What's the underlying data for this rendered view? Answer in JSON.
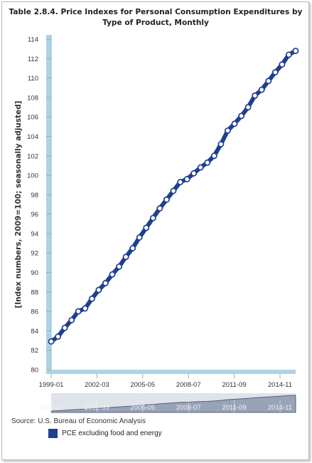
{
  "title_lines": [
    "Table 2.8.4. Price Indexes for Personal Consumption Expenditures by",
    "Type of Product, Monthly"
  ],
  "source": "Source: U.S. Bureau of Economic Analysis",
  "colors": {
    "series": "#1f3f8f",
    "marker_fill": "#ffffff",
    "axis_band": "#add4e4",
    "navigator_bg": "#99a3b8",
    "legend_swatch": "#1f3f8f"
  },
  "chart_data": {
    "type": "line",
    "title": "Table 2.8.4. Price Indexes for Personal Consumption Expenditures by Type of Product, Monthly",
    "ylabel": "[Index numbers, 2009=100; seasonally adjusted]",
    "xlabel": "",
    "ylim": [
      80,
      114
    ],
    "yticks": [
      "80",
      "82",
      "84",
      "86",
      "88",
      "90",
      "92",
      "94",
      "96",
      "98",
      "100",
      "102",
      "104",
      "106",
      "108",
      "110",
      "112",
      "114"
    ],
    "xticks": [
      "1999-01",
      "2002-03",
      "2005-05",
      "2008-07",
      "2011-09",
      "2014-11"
    ],
    "navigator_ticks": [
      "1999-01",
      "2002-03",
      "2005-05",
      "2008-07",
      "2011-09",
      "2014-11"
    ],
    "grid": false,
    "legend": "bottom-left",
    "series": [
      {
        "name": "PCE excluding food and energy",
        "x_start": "1999-01",
        "x_end": "2015-12",
        "values": [
          82.9,
          83.4,
          84.3,
          85.1,
          86.0,
          86.3,
          87.3,
          88.2,
          88.9,
          89.8,
          90.6,
          91.6,
          92.5,
          93.6,
          94.6,
          95.6,
          96.6,
          97.5,
          98.4,
          99.3,
          99.6,
          100.2,
          100.8,
          101.3,
          102.0,
          103.2,
          104.6,
          105.3,
          106.1,
          107.0,
          108.2,
          108.8,
          109.7,
          110.6,
          111.4,
          112.4,
          112.8
        ]
      }
    ]
  }
}
